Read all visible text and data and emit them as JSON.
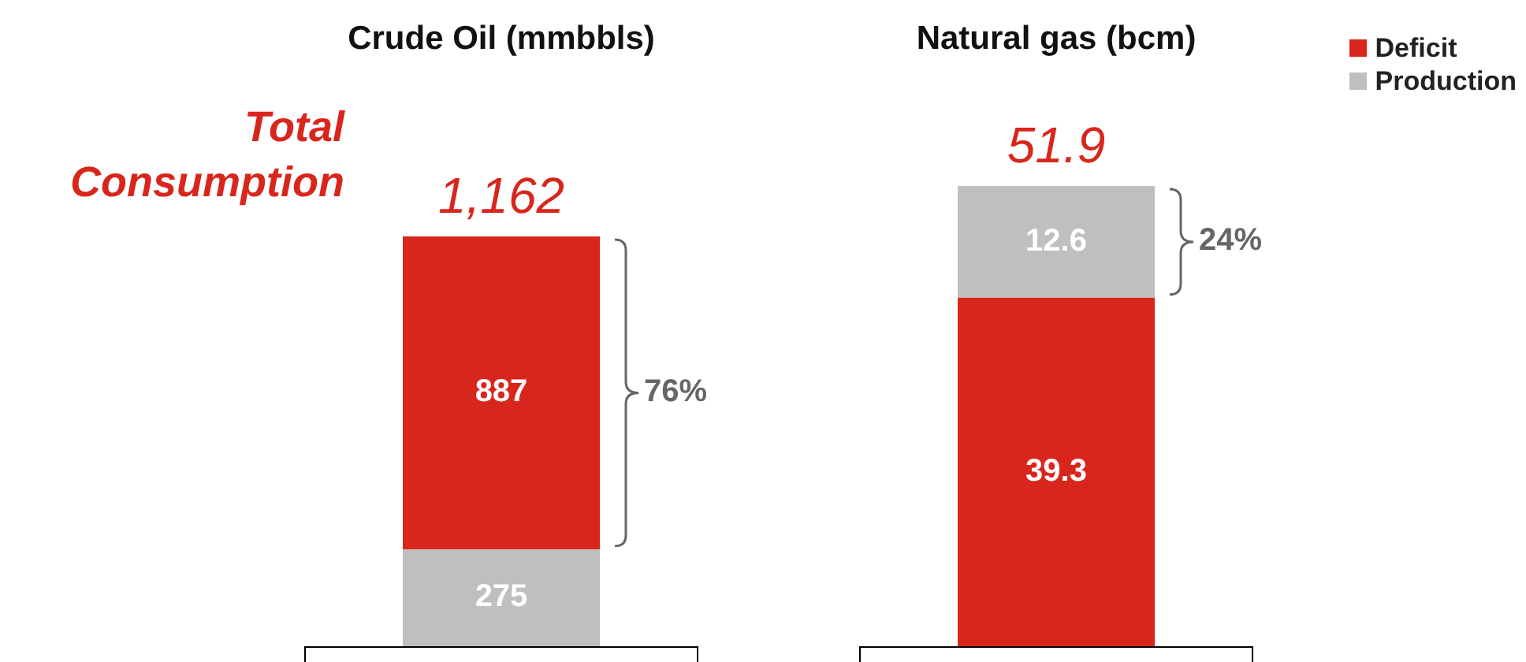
{
  "chart_data": [
    {
      "type": "bar",
      "title": "Crude Oil (mmbbls)",
      "categories": [
        null
      ],
      "stacked": true,
      "data_labels": true,
      "tick_labels": false,
      "legend": false,
      "series": [
        {
          "color": "#bfbfbf",
          "values": [
            275
          ]
        },
        {
          "color": "#d9261c",
          "values": [
            887
          ]
        }
      ],
      "totals": [
        "1,162"
      ],
      "annotations": [
        "Total Consumption",
        "76%"
      ]
    },
    {
      "type": "bar",
      "title": "Natural gas (bcm)",
      "categories": [
        null
      ],
      "stacked": true,
      "data_labels": true,
      "tick_labels": false,
      "legend": "top right",
      "series": [
        {
          "name": "Deficit",
          "color": "#d9261c",
          "values": [
            39.3
          ]
        },
        {
          "name": "Production",
          "color": "#bfbfbf",
          "values": [
            12.6
          ]
        }
      ],
      "totals": [
        "51.9"
      ],
      "annotations": [
        "24%"
      ]
    }
  ]
}
